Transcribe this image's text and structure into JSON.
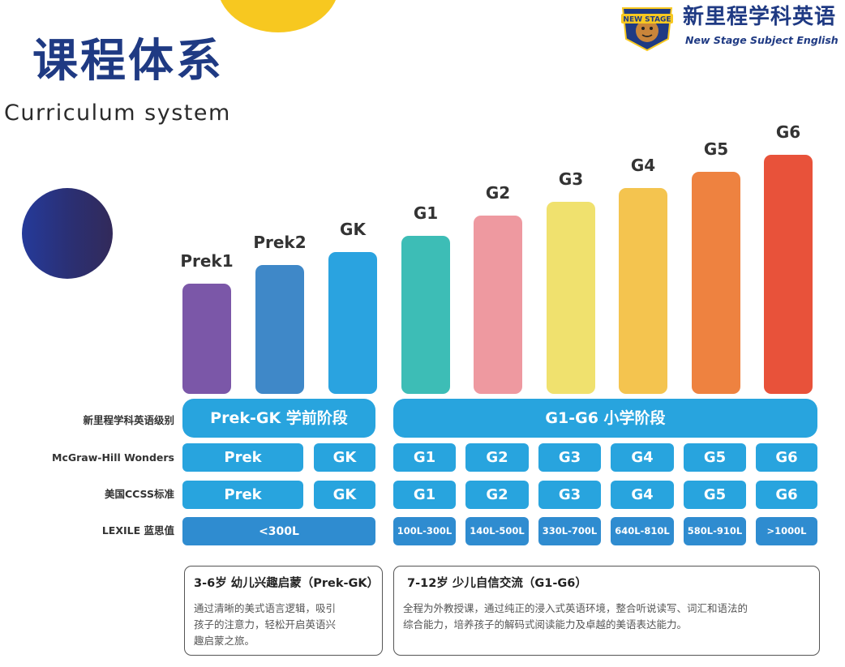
{
  "header": {
    "title": "课程体系",
    "subtitle": "Curriculum system"
  },
  "brand": {
    "name_cn": "新里程学科英语",
    "name_en": "New Stage Subject English",
    "logo_text": "NEW STAGE"
  },
  "grades": [
    {
      "label": "Prek1",
      "color": "#7b57a8"
    },
    {
      "label": "Prek2",
      "color": "#3f88c8"
    },
    {
      "label": "GK",
      "color": "#2aa3e0"
    },
    {
      "label": "G1",
      "color": "#3dbdb6"
    },
    {
      "label": "G2",
      "color": "#ee99a0"
    },
    {
      "label": "G3",
      "color": "#f0e16e"
    },
    {
      "label": "G4",
      "color": "#f4c44f"
    },
    {
      "label": "G5",
      "color": "#ee8240"
    },
    {
      "label": "G6",
      "color": "#e8523a"
    }
  ],
  "rows": {
    "level_label": "新里程学科英语级别",
    "wonders_label": "McGraw-Hill Wonders",
    "ccss_label": "美国CCSS标准",
    "lexile_label": "LEXILE 蓝思值"
  },
  "stages": {
    "preschool": "Prek-GK 学前阶段",
    "primary": "G1-G6 小学阶段"
  },
  "wonders": [
    "Prek",
    "GK",
    "G1",
    "G2",
    "G3",
    "G4",
    "G5",
    "G6"
  ],
  "ccss": [
    "Prek",
    "GK",
    "G1",
    "G2",
    "G3",
    "G4",
    "G5",
    "G6"
  ],
  "lexile": [
    "<300L",
    "100L-300L",
    "140L-500L",
    "330L-700L",
    "640L-810L",
    "580L-910L",
    ">1000L"
  ],
  "descriptions": {
    "preschool": {
      "title": "3-6岁 幼儿兴趣启蒙（Prek-GK）",
      "lines": [
        "通过清晰的美式语言逻辑，吸引",
        "孩子的注意力，轻松开启英语兴",
        "趣启蒙之旅。"
      ]
    },
    "primary": {
      "title": "7-12岁 少儿自信交流（G1-G6）",
      "lines": [
        "全程为外教授课，通过纯正的浸入式英语环境，整合听说读写、词汇和语法的",
        "综合能力，培养孩子的解码式阅读能力及卓越的美语表达能力。"
      ]
    }
  },
  "colors": {
    "title_navy": "#1f3a83",
    "cell_blue": "#28a4de",
    "lexile_blue": "#2f8cd0",
    "accent_yellow": "#f7c820"
  }
}
